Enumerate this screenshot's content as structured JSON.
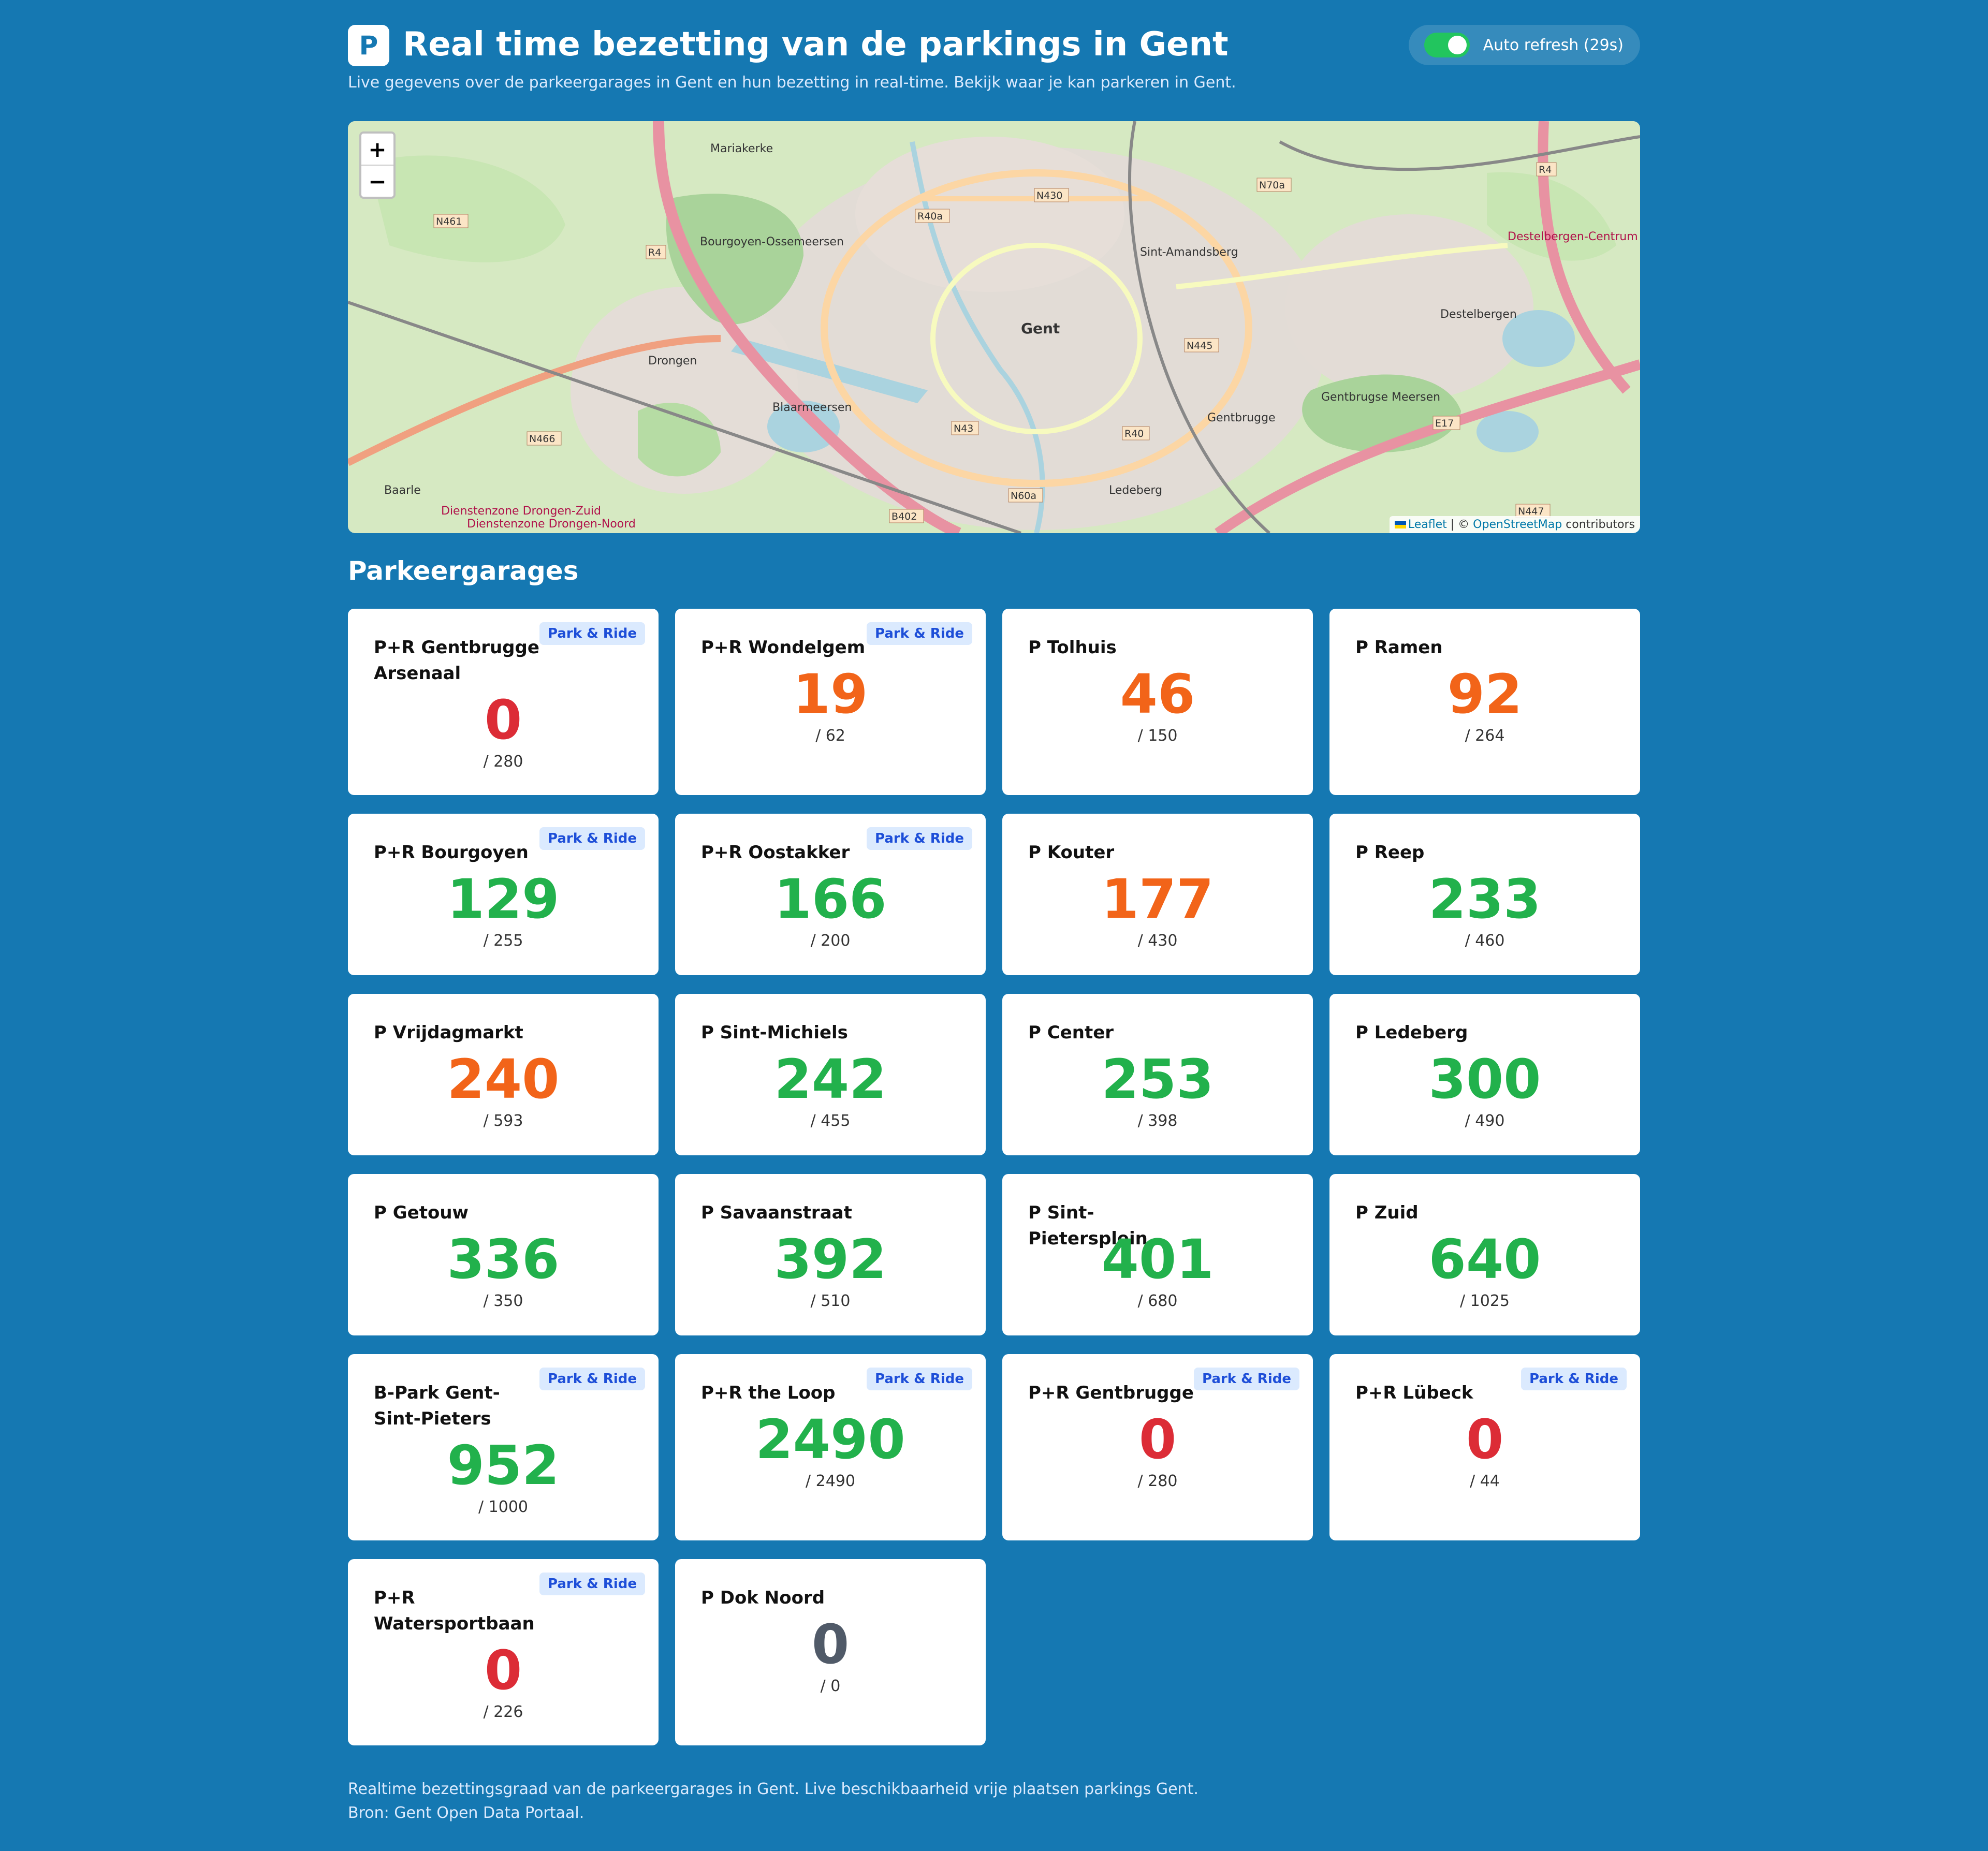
{
  "header": {
    "logo_letter": "P",
    "title": "Real time bezetting van de parkings in Gent",
    "subtitle": "Live gegevens over de parkeergarages in Gent en hun bezetting in real-time. Bekijk waar je kan parkeren in Gent.",
    "auto_refresh_label": "Auto refresh (29s)",
    "auto_refresh_on": true
  },
  "map": {
    "zoom_in": "+",
    "zoom_out": "−",
    "attribution_leaflet": "Leaflet",
    "attribution_sep": " | © ",
    "attribution_osm": "OpenStreetMap",
    "attribution_suffix": " contributors",
    "labels": [
      "Mariakerke",
      "Bourgoyen-Ossemeersen",
      "Drongen",
      "Blaarmeersen",
      "Gent",
      "Sint-Amandsberg",
      "Destelbergen",
      "Gentbrugge",
      "Gentbrugse Meersen",
      "Ledeberg",
      "Baarle",
      "Destelbergen-Centrum",
      "Dienstenzone Drongen-Zuid",
      "Dienstenzone Drongen-Noord"
    ],
    "road_labels": [
      "N461",
      "R4",
      "R40a",
      "N430",
      "N70a",
      "N445",
      "N466",
      "N43",
      "R40",
      "N60a",
      "B402",
      "E17",
      "N447",
      "R4"
    ]
  },
  "section_title": "Parkeergarages",
  "colors": {
    "available": "#22b14c",
    "medium": "#f26419",
    "full": "#dc2c36",
    "unknown": "#505a68",
    "badge_bg": "#dbeafe",
    "badge_text": "#1d4ed8"
  },
  "parkings": [
    {
      "name": "P+R Gentbrugge Arsenaal",
      "free": "0",
      "total": "/ 280",
      "badge": "Park & Ride",
      "status": "full"
    },
    {
      "name": "P+R Wondelgem",
      "free": "19",
      "total": "/ 62",
      "badge": "Park & Ride",
      "status": "medium"
    },
    {
      "name": "P Tolhuis",
      "free": "46",
      "total": "/ 150",
      "badge": "",
      "status": "medium"
    },
    {
      "name": "P Ramen",
      "free": "92",
      "total": "/ 264",
      "badge": "",
      "status": "medium"
    },
    {
      "name": "P+R Bourgoyen",
      "free": "129",
      "total": "/ 255",
      "badge": "Park & Ride",
      "status": "available"
    },
    {
      "name": "P+R Oostakker",
      "free": "166",
      "total": "/ 200",
      "badge": "Park & Ride",
      "status": "available"
    },
    {
      "name": "P Kouter",
      "free": "177",
      "total": "/ 430",
      "badge": "",
      "status": "medium"
    },
    {
      "name": "P Reep",
      "free": "233",
      "total": "/ 460",
      "badge": "",
      "status": "available"
    },
    {
      "name": "P Vrijdagmarkt",
      "free": "240",
      "total": "/ 593",
      "badge": "",
      "status": "medium"
    },
    {
      "name": "P Sint-Michiels",
      "free": "242",
      "total": "/ 455",
      "badge": "",
      "status": "available"
    },
    {
      "name": "P Center",
      "free": "253",
      "total": "/ 398",
      "badge": "",
      "status": "available"
    },
    {
      "name": "P Ledeberg",
      "free": "300",
      "total": "/ 490",
      "badge": "",
      "status": "available"
    },
    {
      "name": "P Getouw",
      "free": "336",
      "total": "/ 350",
      "badge": "",
      "status": "available"
    },
    {
      "name": "P Savaanstraat",
      "free": "392",
      "total": "/ 510",
      "badge": "",
      "status": "available"
    },
    {
      "name": "P Sint-Pietersplein",
      "free": "401",
      "total": "/ 680",
      "badge": "",
      "status": "available"
    },
    {
      "name": "P Zuid",
      "free": "640",
      "total": "/ 1025",
      "badge": "",
      "status": "available"
    },
    {
      "name": "B-Park Gent-Sint-Pieters",
      "free": "952",
      "total": "/ 1000",
      "badge": "Park & Ride",
      "status": "available"
    },
    {
      "name": "P+R the Loop",
      "free": "2490",
      "total": "/ 2490",
      "badge": "Park & Ride",
      "status": "available"
    },
    {
      "name": "P+R Gentbrugge",
      "free": "0",
      "total": "/ 280",
      "badge": "Park & Ride",
      "status": "full"
    },
    {
      "name": "P+R Lübeck",
      "free": "0",
      "total": "/ 44",
      "badge": "Park & Ride",
      "status": "full"
    },
    {
      "name": "P+R Watersportbaan",
      "free": "0",
      "total": "/ 226",
      "badge": "Park & Ride",
      "status": "full"
    },
    {
      "name": "P Dok Noord",
      "free": "0",
      "total": "/ 0",
      "badge": "",
      "status": "unknown"
    }
  ],
  "footer": {
    "line1": "Realtime bezettingsgraad van de parkeergarages in Gent. Live beschikbaarheid vrije plaatsen parkings Gent.",
    "line2": "Bron: Gent Open Data Portaal."
  }
}
